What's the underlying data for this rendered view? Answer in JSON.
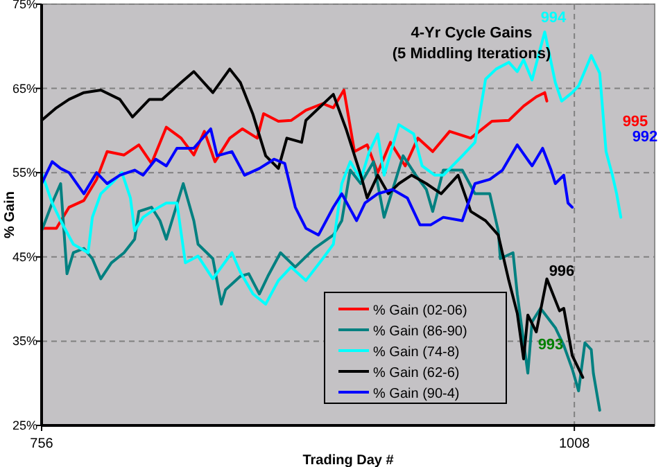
{
  "chart_data": {
    "type": "line",
    "title": "4-Yr Cycle Gains",
    "subtitle": "(5 Middling Iterations)",
    "xlabel": "Trading Day #",
    "ylabel": "% Gain",
    "xlim": [
      756,
      1046
    ],
    "xticks": [
      756,
      1008
    ],
    "ylim": [
      25,
      75
    ],
    "yticks": [
      {
        "value": 25,
        "label": "25%"
      },
      {
        "value": 35,
        "label": "35%"
      },
      {
        "value": 45,
        "label": "45%"
      },
      {
        "value": 55,
        "label": "55%"
      },
      {
        "value": 65,
        "label": "65%"
      },
      {
        "value": 75,
        "label": "75%"
      }
    ],
    "grid": true,
    "legend": "bottom right",
    "marker": "none",
    "line_style": "solid",
    "annotations": [
      "995",
      "992",
      "994",
      "996",
      "993"
    ],
    "series": [
      {
        "name": "% Gain (02-06)",
        "color": "#ff0000",
        "x": [
          756,
          763,
          769,
          776,
          782,
          787,
          795,
          802,
          808,
          815,
          822,
          828,
          833,
          838,
          845,
          851,
          858,
          861,
          868,
          874,
          881,
          889,
          894,
          899,
          904,
          910,
          915,
          921,
          928,
          934,
          941,
          949,
          959,
          969,
          977,
          984,
          990,
          994,
          995
        ],
        "values": [
          48.4,
          48.4,
          50.9,
          51.7,
          54.2,
          57.5,
          57.1,
          58.3,
          56.1,
          60.4,
          59.1,
          57.1,
          59.9,
          56.3,
          59.1,
          60.2,
          59.1,
          62.0,
          61.1,
          61.2,
          62.4,
          63.2,
          62.7,
          64.8,
          57.5,
          58.3,
          55.0,
          58.6,
          55.8,
          59.1,
          57.5,
          59.9,
          59.1,
          61.1,
          61.2,
          62.9,
          64.0,
          64.5,
          63.5
        ]
      },
      {
        "name": "% Gain (86-90)",
        "color": "#008080",
        "x": [
          756,
          761,
          765,
          768,
          771,
          776,
          780,
          784,
          789,
          795,
          800,
          802,
          808,
          812,
          815,
          823,
          828,
          830,
          837,
          841,
          843,
          850,
          854,
          859,
          863,
          869,
          876,
          885,
          894,
          898,
          902,
          907,
          913,
          918,
          927,
          933,
          938,
          941,
          946,
          955,
          961,
          968,
          972,
          973,
          979,
          981,
          986,
          988,
          992,
          999,
          1003,
          1007,
          1010,
          1013,
          1016,
          1017,
          1020
        ],
        "values": [
          48.1,
          51.4,
          53.7,
          43.0,
          45.5,
          46.0,
          44.8,
          42.4,
          44.3,
          45.5,
          47.1,
          50.4,
          50.9,
          49.3,
          47.1,
          53.7,
          49.3,
          46.5,
          44.8,
          39.4,
          41.1,
          42.7,
          43.0,
          40.6,
          42.7,
          45.5,
          43.8,
          46.0,
          47.6,
          49.3,
          55.3,
          53.7,
          56.3,
          49.7,
          57.0,
          54.7,
          53.0,
          50.4,
          55.3,
          55.3,
          52.5,
          52.5,
          48.1,
          44.8,
          45.5,
          40.6,
          31.2,
          37.3,
          38.9,
          36.6,
          34.5,
          31.7,
          29.1,
          34.8,
          34.0,
          31.2,
          26.8
        ]
      },
      {
        "name": "% Gain (74-8)",
        "color": "#00ffff",
        "x": [
          756,
          761,
          765,
          771,
          778,
          780,
          784,
          789,
          794,
          798,
          800,
          804,
          808,
          815,
          820,
          824,
          830,
          837,
          846,
          850,
          856,
          862,
          868,
          874,
          881,
          889,
          894,
          898,
          902,
          907,
          911,
          915,
          918,
          925,
          932,
          936,
          942,
          946,
          955,
          961,
          966,
          971,
          977,
          981,
          984,
          988,
          991,
          994,
          999,
          1002,
          1007,
          1010,
          1016,
          1020,
          1023,
          1026,
          1028,
          1030
        ],
        "values": [
          55.0,
          51.4,
          49.3,
          46.5,
          45.5,
          49.7,
          52.5,
          53.7,
          55.0,
          52.0,
          48.1,
          49.7,
          50.4,
          51.4,
          51.4,
          44.3,
          45.1,
          42.4,
          45.5,
          43.2,
          40.6,
          39.4,
          42.2,
          43.8,
          42.2,
          44.8,
          46.5,
          53.7,
          56.3,
          54.2,
          57.5,
          59.6,
          54.7,
          60.7,
          59.6,
          55.8,
          54.7,
          54.7,
          57.0,
          58.6,
          66.1,
          67.3,
          68.1,
          67.0,
          68.4,
          66.0,
          68.9,
          71.7,
          65.7,
          63.5,
          64.5,
          65.3,
          68.9,
          66.8,
          57.5,
          54.7,
          52.5,
          49.7
        ]
      },
      {
        "name": "% Gain (62-6)",
        "color": "#000000",
        "x": [
          756,
          763,
          769,
          776,
          784,
          793,
          799,
          807,
          813,
          822,
          828,
          837,
          845,
          850,
          856,
          862,
          868,
          872,
          879,
          881,
          894,
          900,
          907,
          910,
          915,
          920,
          925,
          931,
          938,
          945,
          953,
          959,
          966,
          972,
          977,
          981,
          984,
          986,
          990,
          995,
          1001,
          1003,
          1007,
          1012
        ],
        "values": [
          61.2,
          62.7,
          63.7,
          64.5,
          64.8,
          63.7,
          61.6,
          63.7,
          63.7,
          65.7,
          67.0,
          64.5,
          67.3,
          65.7,
          61.9,
          57.0,
          55.5,
          59.1,
          58.6,
          61.2,
          64.3,
          60.2,
          54.7,
          52.0,
          54.7,
          52.5,
          53.7,
          54.7,
          53.7,
          52.5,
          54.7,
          50.4,
          49.3,
          47.6,
          42.2,
          38.3,
          32.9,
          38.1,
          36.1,
          42.4,
          38.6,
          38.9,
          33.3,
          30.7
        ]
      },
      {
        "name": "% Gain (90-4)",
        "color": "#0000ff",
        "x": [
          756,
          761,
          765,
          769,
          776,
          782,
          787,
          793,
          800,
          804,
          810,
          815,
          820,
          828,
          836,
          839,
          846,
          852,
          859,
          866,
          871,
          876,
          881,
          887,
          894,
          898,
          905,
          909,
          915,
          922,
          929,
          935,
          940,
          946,
          955,
          961,
          968,
          974,
          981,
          988,
          993,
          997,
          999,
          1003,
          1005,
          1007
        ],
        "values": [
          53.7,
          56.3,
          55.5,
          55.0,
          52.5,
          55.0,
          53.7,
          54.7,
          55.3,
          54.7,
          56.6,
          55.8,
          57.9,
          57.9,
          60.2,
          57.0,
          57.5,
          54.7,
          55.5,
          56.6,
          56.1,
          50.9,
          48.4,
          47.6,
          50.9,
          52.5,
          49.3,
          51.4,
          52.5,
          53.0,
          52.0,
          48.8,
          48.8,
          49.7,
          49.3,
          53.7,
          54.2,
          55.3,
          58.3,
          55.8,
          57.9,
          55.3,
          53.7,
          54.7,
          51.4,
          50.9
        ]
      }
    ]
  }
}
